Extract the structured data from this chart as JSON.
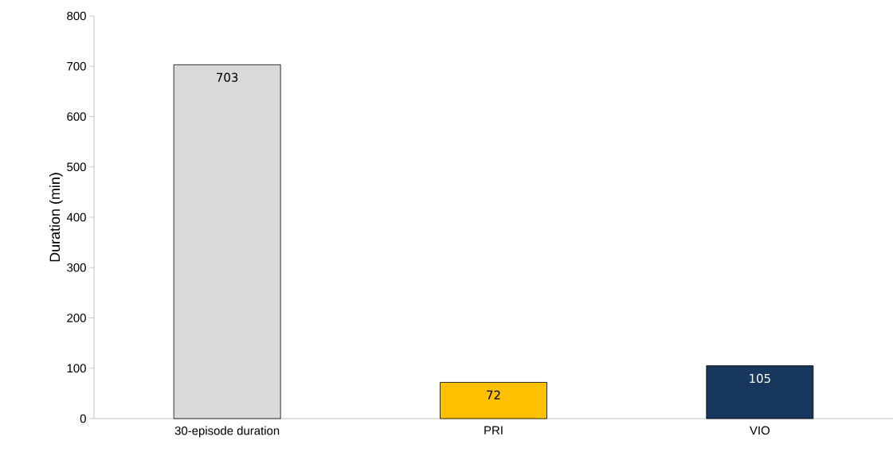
{
  "chart_data": {
    "type": "bar",
    "ylabel": "Duration (min)",
    "categories": [
      "30-episode duration",
      "PRI",
      "VIO"
    ],
    "values": [
      703,
      72,
      105
    ],
    "colors": [
      "#d9d9d9",
      "#ffc000",
      "#17375e"
    ],
    "ylim": [
      0,
      800
    ],
    "yticks": [
      0,
      100,
      200,
      300,
      400,
      500,
      600,
      700,
      800
    ],
    "data_labels": true
  }
}
